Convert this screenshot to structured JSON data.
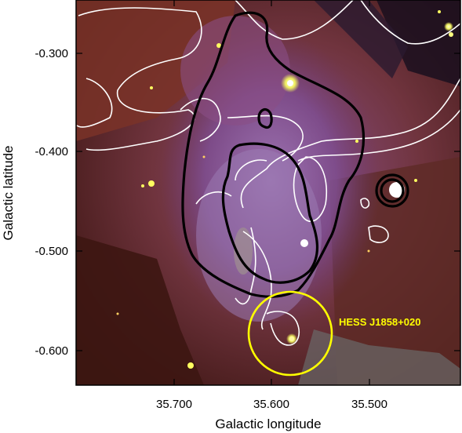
{
  "figure": {
    "xlabel": "Galactic longitude",
    "ylabel": "Galactic latitude",
    "x_ticks": [
      "35.700",
      "35.600",
      "35.500"
    ],
    "y_ticks": [
      "-0.300",
      "-0.400",
      "-0.500",
      "-0.600"
    ],
    "annotation": "HESS J1858+020",
    "annotation_color": "#ffff00",
    "contour_colors": {
      "black": "#000000",
      "white": "#ffffff"
    }
  }
}
